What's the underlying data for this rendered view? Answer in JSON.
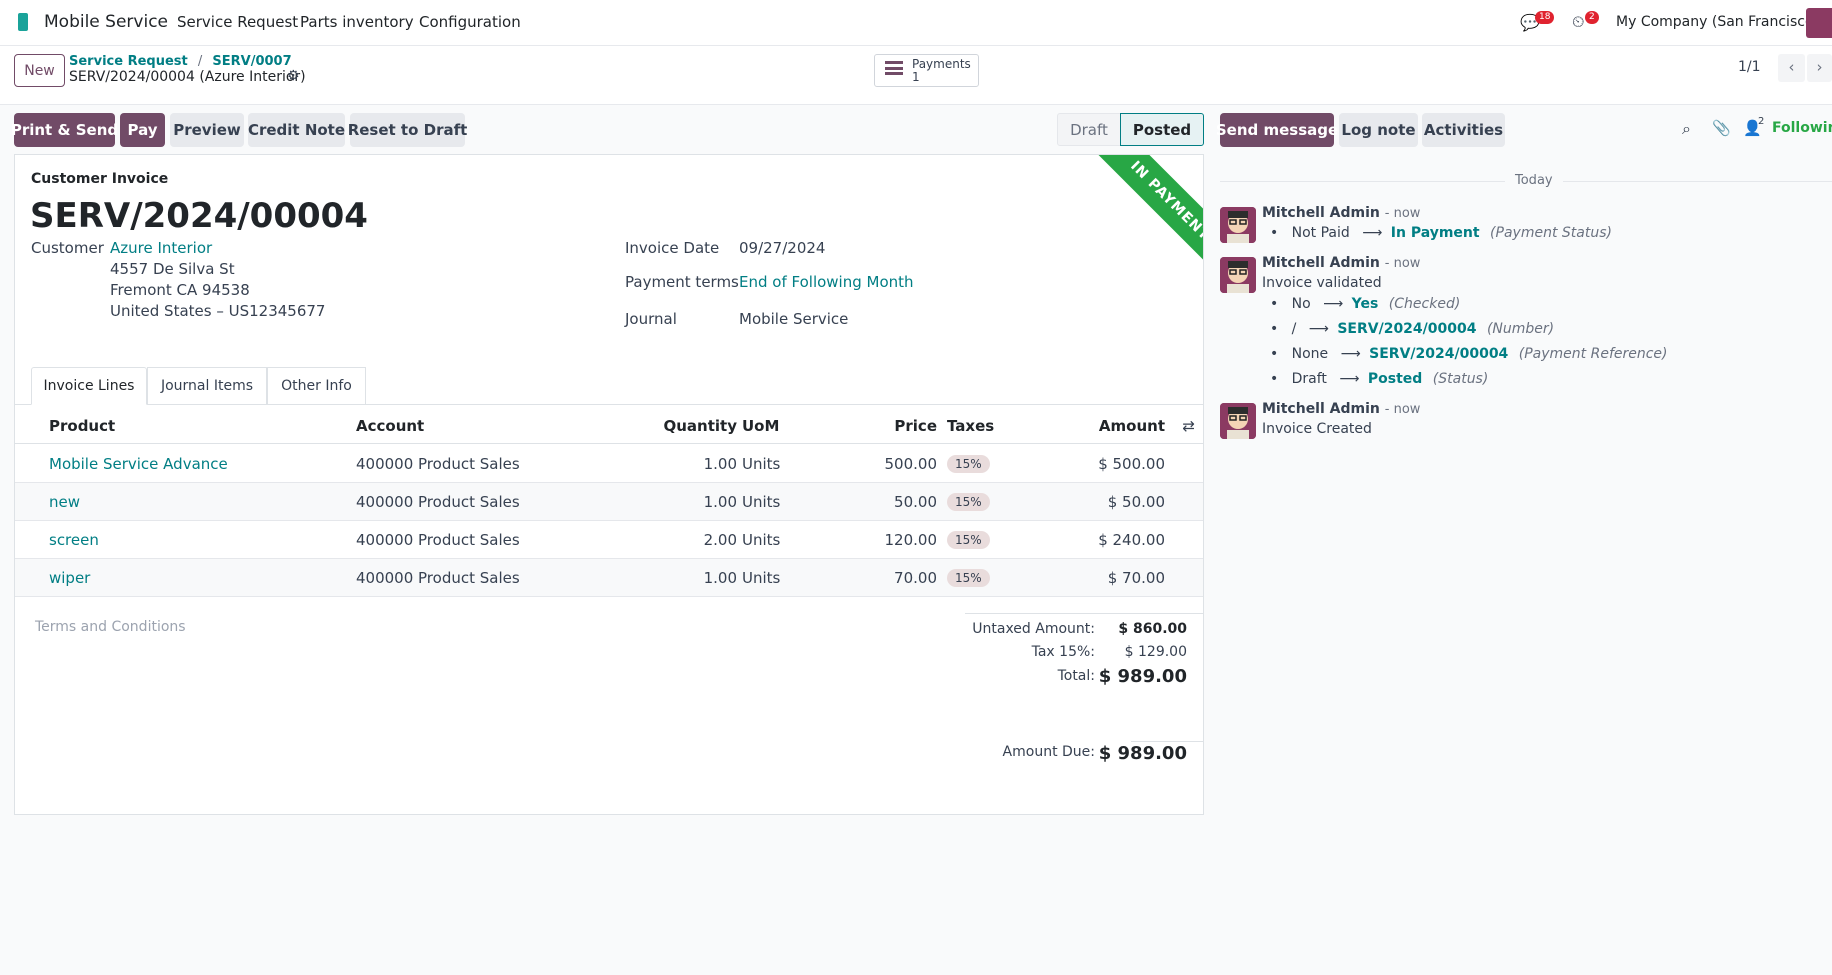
{
  "navbar": {
    "app_name": "Mobile Service",
    "menu": [
      "Service Request",
      "Parts inventory",
      "Configuration"
    ],
    "messages_count": "18",
    "activities_count": "2",
    "company": "My Company (San Francisco)"
  },
  "control_panel": {
    "new_label": "New",
    "breadcrumb": [
      "Service Request",
      "SERV/0007"
    ],
    "breadcrumb_sep": "/",
    "record_title": "SERV/2024/00004 (Azure Interior)",
    "smart_button": {
      "label": "Payments",
      "count": "1"
    },
    "pager": "1/1"
  },
  "actions": {
    "print_send": "Print & Send",
    "pay": "Pay",
    "preview": "Preview",
    "credit_note": "Credit Note",
    "reset_draft": "Reset to Draft"
  },
  "statusbar": {
    "draft": "Draft",
    "posted": "Posted"
  },
  "invoice": {
    "type_label": "Customer Invoice",
    "number": "SERV/2024/00004",
    "ribbon": "IN PAYMENT",
    "customer_label": "Customer",
    "customer_name": "Azure Interior",
    "customer_address": [
      "4557 De Silva St",
      "Fremont CA 94538",
      "United States – US12345677"
    ],
    "invoice_date_label": "Invoice Date",
    "invoice_date": "09/27/2024",
    "payment_terms_label": "Payment terms",
    "payment_terms": "End of Following Month",
    "journal_label": "Journal",
    "journal": "Mobile Service",
    "tabs": [
      "Invoice Lines",
      "Journal Items",
      "Other Info"
    ],
    "columns": {
      "product": "Product",
      "account": "Account",
      "quantity": "Quantity",
      "uom": "UoM",
      "price": "Price",
      "taxes": "Taxes",
      "amount": "Amount"
    },
    "lines": [
      {
        "product": "Mobile Service Advance",
        "account": "400000 Product Sales",
        "quantity": "1.00",
        "uom": "Units",
        "price": "500.00",
        "tax": "15%",
        "amount": "$ 500.00"
      },
      {
        "product": "new",
        "account": "400000 Product Sales",
        "quantity": "1.00",
        "uom": "Units",
        "price": "50.00",
        "tax": "15%",
        "amount": "$ 50.00"
      },
      {
        "product": "screen",
        "account": "400000 Product Sales",
        "quantity": "2.00",
        "uom": "Units",
        "price": "120.00",
        "tax": "15%",
        "amount": "$ 240.00"
      },
      {
        "product": "wiper",
        "account": "400000 Product Sales",
        "quantity": "1.00",
        "uom": "Units",
        "price": "70.00",
        "tax": "15%",
        "amount": "$ 70.00"
      }
    ],
    "terms_placeholder": "Terms and Conditions",
    "totals": {
      "untaxed_label": "Untaxed Amount:",
      "untaxed": "$ 860.00",
      "tax_label": "Tax 15%:",
      "tax": "$ 129.00",
      "total_label": "Total:",
      "total": "$ 989.00",
      "due_label": "Amount Due:",
      "due": "$ 989.00"
    }
  },
  "chatter": {
    "send_message": "Send message",
    "log_note": "Log note",
    "activities": "Activities",
    "followers_count": "2",
    "following": "Following",
    "date_separator": "Today",
    "messages": [
      {
        "author": "Mitchell Admin",
        "time": "- now"
      },
      {
        "author": "Mitchell Admin",
        "time": "- now",
        "body": "Invoice validated"
      },
      {
        "author": "Mitchell Admin",
        "time": "- now",
        "body": "Invoice Created"
      }
    ],
    "tracking1": {
      "old": "Not Paid",
      "new": "In Payment",
      "field": "(Payment Status)"
    },
    "tracking2": [
      {
        "old": "No",
        "new": "Yes",
        "field": "(Checked)"
      },
      {
        "old": "/",
        "new": "SERV/2024/00004",
        "field": "(Number)"
      },
      {
        "old": "None",
        "new": "SERV/2024/00004",
        "field": "(Payment Reference)"
      },
      {
        "old": "Draft",
        "new": "Posted",
        "field": "(Status)"
      }
    ],
    "arrow": "⟶"
  }
}
